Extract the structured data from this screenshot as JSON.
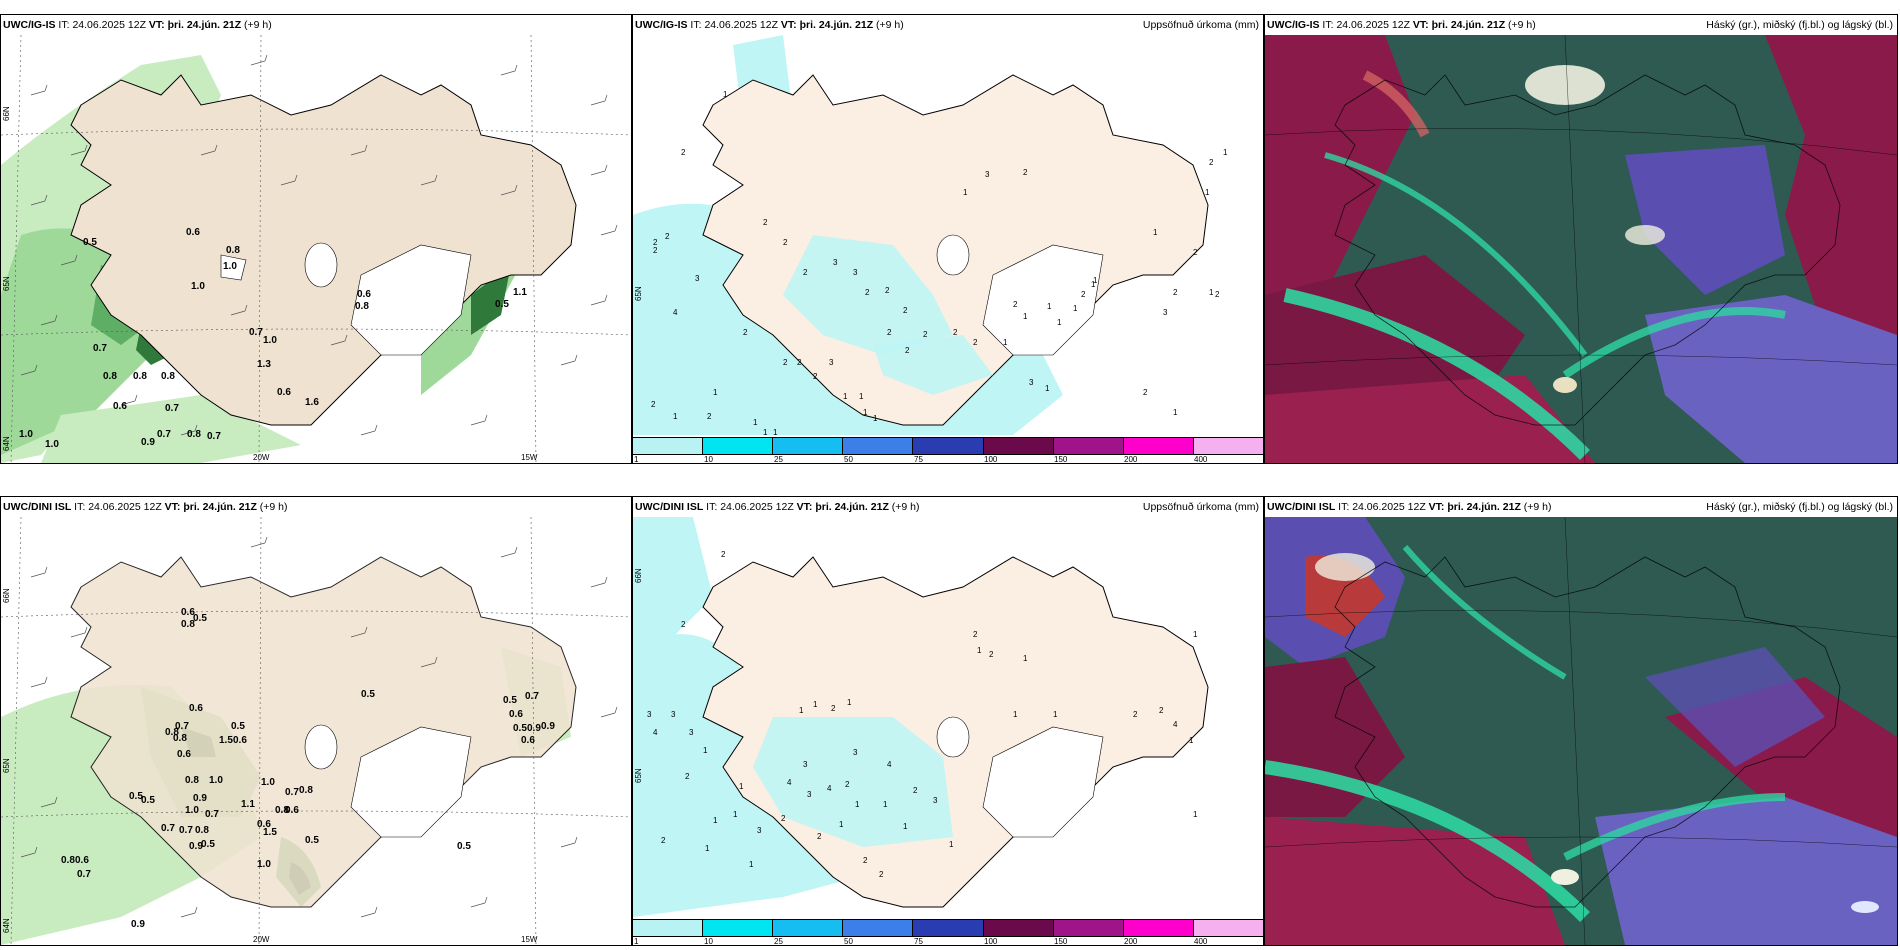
{
  "panels": [
    {
      "id": "wind-igis",
      "model": "UWC/IG-IS",
      "issue_label": "IT:",
      "issue_time": "24.06.2025 12Z",
      "valid_label": "VT:",
      "valid_time": "þri. 24.jún. 21Z",
      "lead": "(+9 h)",
      "right_title": "",
      "lon_labels": [
        "20W",
        "15W"
      ],
      "lat_labels": [
        "66N",
        "65N",
        "64N"
      ],
      "values": [
        "0.5",
        "0.6",
        "0.8",
        "1.0",
        "0.7",
        "1.0",
        "0.6",
        "0.8",
        "0.5",
        "1.1",
        "0.7",
        "0.8",
        "0.8",
        "1.3",
        "0.6",
        "0.7",
        "0.6",
        "0.8",
        "1.0",
        "0.7",
        "0.8",
        "0.7",
        "0.9",
        "1.0",
        "1.0",
        "1.6"
      ]
    },
    {
      "id": "precip-igis",
      "model": "UWC/IG-IS",
      "issue_label": "IT:",
      "issue_time": "24.06.2025 12Z",
      "valid_label": "VT:",
      "valid_time": "þri. 24.jún. 21Z",
      "lead": "(+9 h)",
      "right_title": "Uppsöfnuð úrkoma (mm)",
      "lat_labels": [
        "65N"
      ],
      "legend": {
        "colors": [
          "#b8f2f2",
          "#00e5f0",
          "#16bdf0",
          "#3d7fe8",
          "#2a3db0",
          "#6a0a4a",
          "#a0148a",
          "#ff00cc",
          "#f5b0f0"
        ],
        "ticks": [
          "1",
          "10",
          "25",
          "50",
          "75",
          "100",
          "150",
          "200",
          "400"
        ]
      },
      "values": [
        "1",
        "2",
        "2",
        "2",
        "2",
        "3",
        "4",
        "2",
        "2",
        "1",
        "1",
        "2",
        "1",
        "1",
        "1",
        "2",
        "2",
        "2",
        "3",
        "1",
        "1",
        "2",
        "2",
        "2",
        "3",
        "3",
        "2",
        "2",
        "2",
        "2",
        "2",
        "2",
        "1",
        "1",
        "2",
        "2",
        "2",
        "1",
        "1",
        "3",
        "1",
        "1",
        "2",
        "1",
        "3",
        "1",
        "2",
        "1",
        "1",
        "1",
        "1",
        "2",
        "1",
        "2",
        "2",
        "1",
        "3",
        "2",
        "2",
        "1",
        "1"
      ]
    },
    {
      "id": "cloud-igis",
      "model": "UWC/IG-IS",
      "issue_label": "IT:",
      "issue_time": "24.06.2025 12Z",
      "valid_label": "VT:",
      "valid_time": "þri. 24.jún. 21Z",
      "lead": "(+9 h)",
      "right_title": "Háský (gr.), miðský (fj.bl.) og lágský (bl.)"
    },
    {
      "id": "wind-dini",
      "model": "UWC/DINI ISL",
      "issue_label": "IT:",
      "issue_time": "24.06.2025 12Z",
      "valid_label": "VT:",
      "valid_time": "þri. 24.jún. 21Z",
      "lead": "(+9 h)",
      "right_title": "",
      "lon_labels": [
        "20W",
        "15W"
      ],
      "lat_labels": [
        "66N",
        "65N",
        "64N"
      ],
      "values": [
        "0.6",
        "0.5",
        "0.8",
        "0.6",
        "0.8",
        "0.7",
        "0.8",
        "0.6",
        "0.5",
        "1.5",
        "0.6",
        "0.8",
        "1.0",
        "0.9",
        "1.0",
        "0.7",
        "0.8",
        "0.5",
        "0.5",
        "1.1",
        "0.8",
        "0.6",
        "1.0",
        "0.7",
        "0.7",
        "0.7",
        "0.8",
        "0.6",
        "0.5",
        "0.9",
        "1.5",
        "0.5",
        "0.8",
        "0.6",
        "0.7",
        "0.9",
        "1.0",
        "0.5",
        "0.5",
        "0.5",
        "0.7",
        "0.6",
        "0.5",
        "0.9",
        "0.6",
        "0.9"
      ]
    },
    {
      "id": "precip-dini",
      "model": "UWC/DINI ISL",
      "issue_label": "IT:",
      "issue_time": "24.06.2025 12Z",
      "valid_label": "VT:",
      "valid_time": "þri. 24.jún. 21Z",
      "lead": "(+9 h)",
      "right_title": "Uppsöfnuð úrkoma (mm)",
      "lat_labels": [
        "66N",
        "65N"
      ],
      "legend": {
        "colors": [
          "#b8f2f2",
          "#00e5f0",
          "#16bdf0",
          "#3d7fe8",
          "#2a3db0",
          "#6a0a4a",
          "#a0148a",
          "#ff00cc",
          "#f5b0f0"
        ],
        "ticks": [
          "1",
          "10",
          "25",
          "50",
          "75",
          "100",
          "150",
          "200",
          "400"
        ]
      },
      "values": [
        "2",
        "2",
        "3",
        "4",
        "3",
        "3",
        "2",
        "1",
        "1",
        "1",
        "1",
        "2",
        "1",
        "1",
        "2",
        "1",
        "3",
        "4",
        "3",
        "4",
        "3",
        "4",
        "2",
        "1",
        "1",
        "2",
        "3",
        "2",
        "2",
        "1",
        "1",
        "1",
        "3",
        "2",
        "2",
        "1",
        "1",
        "1",
        "2",
        "2",
        "1",
        "1",
        "1",
        "2",
        "4",
        "2",
        "1",
        "1",
        "1"
      ]
    },
    {
      "id": "cloud-dini",
      "model": "UWC/DINI ISL",
      "issue_label": "IT:",
      "issue_time": "24.06.2025 12Z",
      "valid_label": "VT:",
      "valid_time": "þri. 24.jún. 21Z",
      "lead": "(+9 h)",
      "right_title": "Háský (gr.), miðský (fj.bl.) og lágský (bl.)"
    }
  ]
}
